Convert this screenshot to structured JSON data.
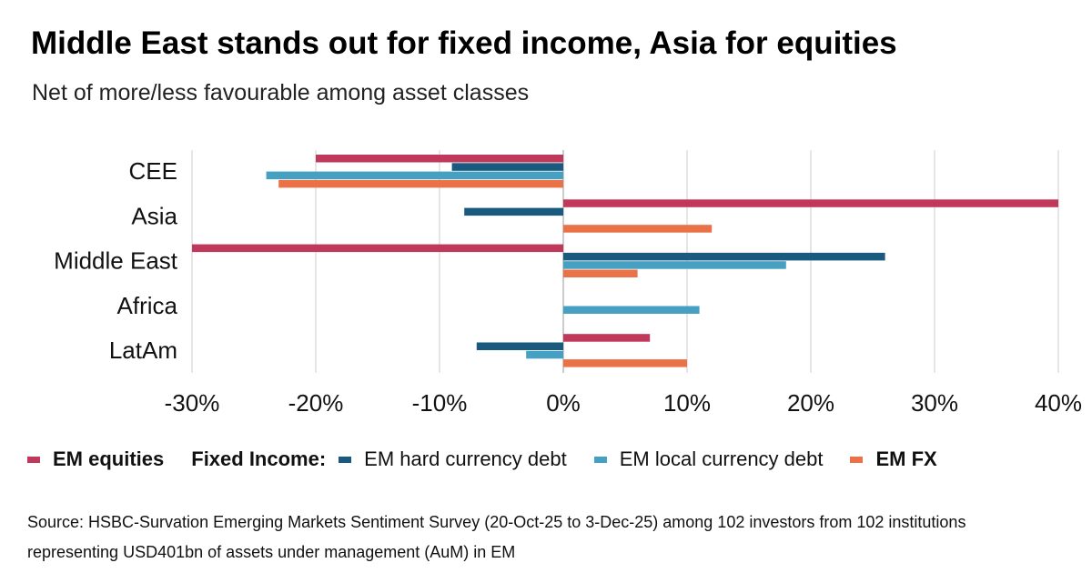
{
  "title": "Middle East stands out for fixed income, Asia for equities",
  "subtitle": "Net of more/less favourable among asset classes",
  "chart_data": {
    "type": "bar",
    "orientation": "horizontal",
    "categories": [
      "CEE",
      "Asia",
      "Middle East",
      "Africa",
      "LatAm"
    ],
    "series": [
      {
        "name": "EM equities",
        "color": "#c0395a",
        "values": [
          -20,
          40,
          -30,
          0,
          7
        ]
      },
      {
        "name": "EM hard currency debt",
        "color": "#1a5a7e",
        "values": [
          -9,
          -8,
          26,
          0,
          -7
        ]
      },
      {
        "name": "EM local currency debt",
        "color": "#46a0c1",
        "values": [
          -24,
          0,
          18,
          11,
          -3
        ]
      },
      {
        "name": "EM FX",
        "color": "#eb7147",
        "values": [
          -23,
          12,
          6,
          0,
          10
        ]
      }
    ],
    "xlim": [
      -30,
      40
    ],
    "xticks": [
      "-30%",
      "-20%",
      "-10%",
      "0%",
      "10%",
      "20%",
      "30%",
      "40%"
    ],
    "unit": "%",
    "grid": true,
    "legend": "bottom"
  },
  "legend": {
    "equities": "EM equities",
    "fixed_income_label": "Fixed Income:",
    "hard": "EM hard currency debt",
    "local": "EM local currency debt",
    "fx": "EM FX"
  },
  "source": "Source: HSBC-Survation Emerging Markets Sentiment Survey (20-Oct-25 to 3-Dec-25) among 102 investors from 102 institutions representing USD401bn of assets under management (AuM) in EM"
}
